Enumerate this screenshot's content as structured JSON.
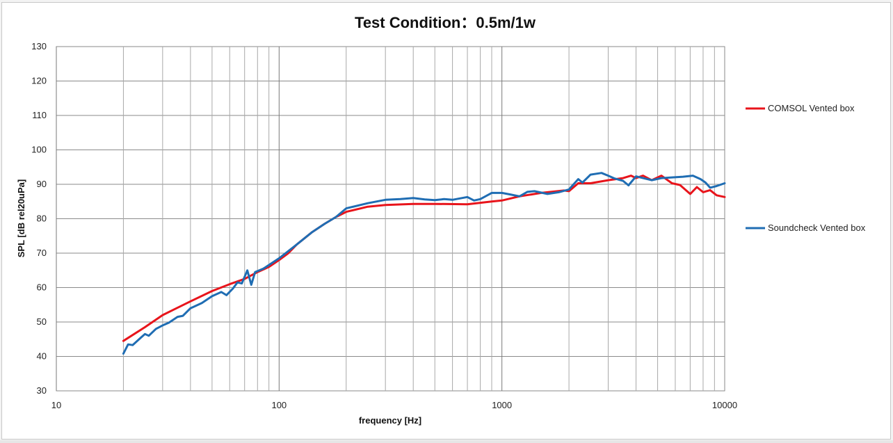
{
  "chart_data": {
    "type": "line",
    "title": "Test Condition：0.5m/1w",
    "xlabel": "frequency [Hz]",
    "ylabel": "SPL [dB rel20uPa]",
    "x_scale": "log",
    "xlim": [
      10,
      10000
    ],
    "ylim": [
      30,
      130
    ],
    "x_ticks": [
      10,
      100,
      1000,
      10000
    ],
    "x_tick_labels": [
      "10",
      "100",
      "1000",
      "10000"
    ],
    "y_ticks": [
      30,
      40,
      50,
      60,
      70,
      80,
      90,
      100,
      110,
      120,
      130
    ],
    "y_tick_labels": [
      "30",
      "40",
      "50",
      "60",
      "70",
      "80",
      "90",
      "100",
      "110",
      "120",
      "130"
    ],
    "grid": true,
    "legend_position": "right",
    "series": [
      {
        "name": "COMSOL Vented box",
        "color": "#e8141b",
        "points": [
          [
            20,
            44.5
          ],
          [
            25,
            48.5
          ],
          [
            30,
            52
          ],
          [
            40,
            56
          ],
          [
            50,
            59
          ],
          [
            60,
            61
          ],
          [
            70,
            62.5
          ],
          [
            80,
            64.5
          ],
          [
            90,
            66
          ],
          [
            100,
            68
          ],
          [
            110,
            70
          ],
          [
            120,
            72.5
          ],
          [
            140,
            76
          ],
          [
            160,
            78.5
          ],
          [
            180,
            80.5
          ],
          [
            200,
            82
          ],
          [
            250,
            83.5
          ],
          [
            300,
            84
          ],
          [
            400,
            84.3
          ],
          [
            500,
            84.3
          ],
          [
            700,
            84.2
          ],
          [
            900,
            85
          ],
          [
            1000,
            85.3
          ],
          [
            1200,
            86.5
          ],
          [
            1500,
            87.5
          ],
          [
            1900,
            88.2
          ],
          [
            2000,
            88
          ],
          [
            2200,
            90.3
          ],
          [
            2500,
            90.3
          ],
          [
            3000,
            91.2
          ],
          [
            3500,
            91.8
          ],
          [
            3800,
            92.5
          ],
          [
            4000,
            91.8
          ],
          [
            4300,
            92.5
          ],
          [
            4700,
            91.2
          ],
          [
            5200,
            92.5
          ],
          [
            5800,
            90.3
          ],
          [
            6300,
            89.8
          ],
          [
            7000,
            87.2
          ],
          [
            7500,
            89.2
          ],
          [
            8000,
            87.7
          ],
          [
            8600,
            88.3
          ],
          [
            9200,
            86.8
          ],
          [
            10000,
            86.3
          ]
        ]
      },
      {
        "name": "Soundcheck Vented box",
        "color": "#1f6db3",
        "points": [
          [
            20,
            40.8
          ],
          [
            21,
            43.5
          ],
          [
            22,
            43.3
          ],
          [
            24,
            45.5
          ],
          [
            25,
            46.5
          ],
          [
            26,
            46
          ],
          [
            28,
            48
          ],
          [
            30,
            49
          ],
          [
            32,
            49.8
          ],
          [
            35,
            51.5
          ],
          [
            37,
            51.8
          ],
          [
            40,
            54
          ],
          [
            45,
            55.5
          ],
          [
            50,
            57.5
          ],
          [
            55,
            58.7
          ],
          [
            58,
            57.8
          ],
          [
            62,
            59.7
          ],
          [
            65,
            61.5
          ],
          [
            68,
            61.2
          ],
          [
            72,
            65
          ],
          [
            75,
            60.8
          ],
          [
            78,
            64.5
          ],
          [
            85,
            65.5
          ],
          [
            100,
            68.5
          ],
          [
            120,
            72.5
          ],
          [
            140,
            76
          ],
          [
            160,
            78.5
          ],
          [
            180,
            80.5
          ],
          [
            200,
            83
          ],
          [
            250,
            84.5
          ],
          [
            300,
            85.5
          ],
          [
            350,
            85.7
          ],
          [
            400,
            86
          ],
          [
            450,
            85.6
          ],
          [
            500,
            85.4
          ],
          [
            550,
            85.7
          ],
          [
            600,
            85.5
          ],
          [
            700,
            86.3
          ],
          [
            750,
            85.3
          ],
          [
            800,
            85.7
          ],
          [
            900,
            87.5
          ],
          [
            1000,
            87.5
          ],
          [
            1100,
            87
          ],
          [
            1200,
            86.5
          ],
          [
            1300,
            87.8
          ],
          [
            1400,
            88
          ],
          [
            1600,
            87.2
          ],
          [
            1800,
            87.7
          ],
          [
            2000,
            88.5
          ],
          [
            2200,
            91.5
          ],
          [
            2300,
            90.5
          ],
          [
            2500,
            92.8
          ],
          [
            2800,
            93.3
          ],
          [
            3000,
            92.5
          ],
          [
            3200,
            91.7
          ],
          [
            3500,
            91
          ],
          [
            3700,
            89.7
          ],
          [
            4000,
            92.3
          ],
          [
            4300,
            91.8
          ],
          [
            4700,
            91.2
          ],
          [
            5200,
            91.8
          ],
          [
            5800,
            92
          ],
          [
            6500,
            92.2
          ],
          [
            7200,
            92.5
          ],
          [
            7800,
            91.5
          ],
          [
            8200,
            90.5
          ],
          [
            8600,
            89
          ],
          [
            9200,
            89.5
          ],
          [
            10000,
            90.3
          ]
        ]
      }
    ]
  }
}
